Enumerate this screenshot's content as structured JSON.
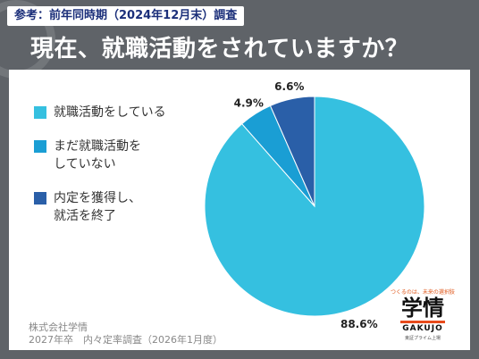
{
  "header": {
    "ref_tag": "参考：前年同時期（2024年12月末）調査",
    "title": "現在、就職活動をされていますか？"
  },
  "colors": {
    "slice1": "#35c0e0",
    "slice2": "#1a9ed4",
    "slice3": "#2a5fa8"
  },
  "chart_data": {
    "type": "pie",
    "title": "",
    "labels": [
      "就職活動をしている",
      "まだ就職活動を\nしていない",
      "内定を獲得し、\n就活を終了"
    ],
    "values": [
      88.6,
      4.9,
      6.6
    ],
    "value_labels": [
      "88.6%",
      "4.9%",
      "6.6%"
    ],
    "legend_position": "left"
  },
  "footer": {
    "source": "株式会社学情\n2027年卒　内々定率調査（2026年1月度）"
  },
  "logo": {
    "tagline": "つくるのは、未来の選択肢",
    "main": "学情",
    "en": "GAKUJO",
    "sub": "東証プライム上場"
  }
}
